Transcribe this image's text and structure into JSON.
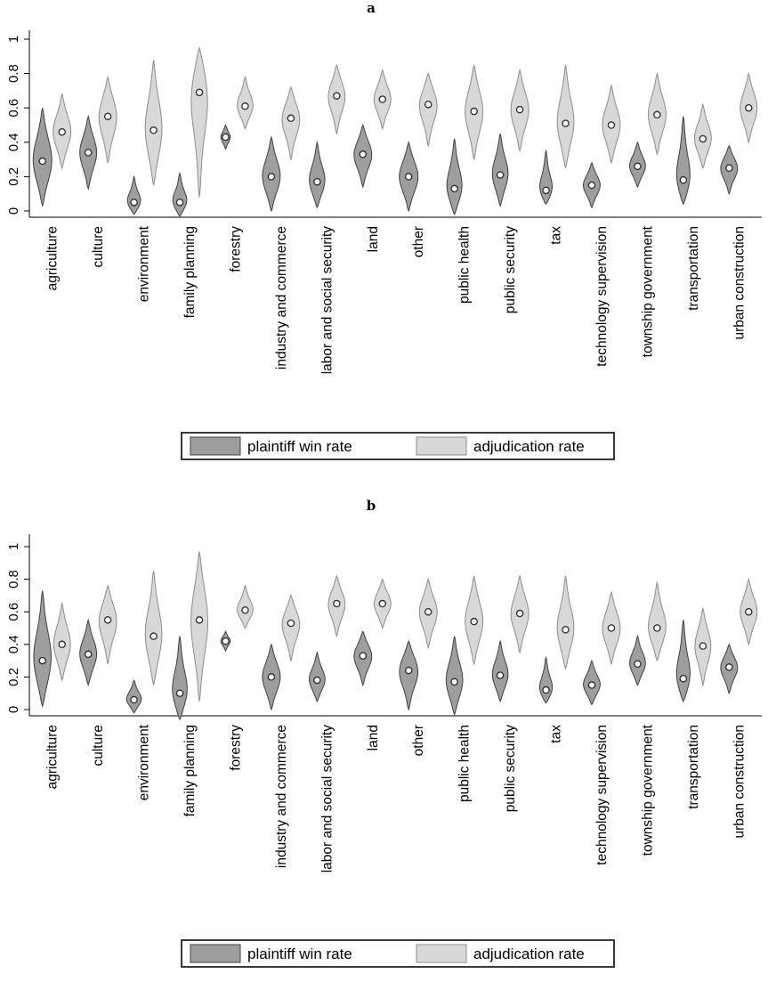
{
  "figure": {
    "background": "#ffffff"
  },
  "legend": {
    "items": [
      {
        "label": "plaintiff win rate",
        "fill": "#9e9e9e",
        "stroke": "#3f3f3f"
      },
      {
        "label": "adjudication rate",
        "fill": "#d8d8d8",
        "stroke": "#8c8c8c"
      }
    ]
  },
  "violin_format": "each violin is [min, median, max, relative_width]",
  "chart_data": [
    {
      "panel": "a",
      "type": "violin",
      "title": "a",
      "xlabel": "",
      "ylabel": "",
      "ylim": [
        -0.08,
        1.0
      ],
      "grid": false,
      "legend_position": "bottom",
      "yticks": {
        "values": [
          0,
          0.2,
          0.4,
          0.6,
          0.8,
          1
        ],
        "labels": [
          "0",
          "0.2",
          "0.4",
          "0.6",
          "0.8",
          "1"
        ]
      },
      "categories": [
        "agriculture",
        "culture",
        "environment",
        "family planning",
        "forestry",
        "industry and commerce",
        "labor and social security",
        "land",
        "other",
        "public health",
        "public security",
        "tax",
        "technology supervision",
        "township government",
        "transportation",
        "urban construction"
      ],
      "series": [
        {
          "name": "plaintiff win rate",
          "fill": "#9e9e9e",
          "stroke": "#3f3f3f",
          "violins": [
            [
              0.03,
              0.29,
              0.6,
              1.0
            ],
            [
              0.13,
              0.34,
              0.55,
              0.9
            ],
            [
              -0.02,
              0.05,
              0.2,
              0.75
            ],
            [
              -0.03,
              0.05,
              0.22,
              0.8
            ],
            [
              0.36,
              0.43,
              0.5,
              0.5
            ],
            [
              0.0,
              0.2,
              0.43,
              0.95
            ],
            [
              0.02,
              0.17,
              0.4,
              0.85
            ],
            [
              0.14,
              0.33,
              0.5,
              0.95
            ],
            [
              0.0,
              0.2,
              0.4,
              1.0
            ],
            [
              -0.02,
              0.13,
              0.42,
              0.85
            ],
            [
              0.03,
              0.21,
              0.45,
              0.85
            ],
            [
              0.04,
              0.12,
              0.35,
              0.75
            ],
            [
              0.02,
              0.15,
              0.28,
              0.9
            ],
            [
              0.14,
              0.26,
              0.4,
              0.85
            ],
            [
              0.04,
              0.18,
              0.55,
              0.8
            ],
            [
              0.1,
              0.25,
              0.38,
              0.9
            ]
          ]
        },
        {
          "name": "adjudication rate",
          "fill": "#d8d8d8",
          "stroke": "#8c8c8c",
          "violins": [
            [
              0.25,
              0.46,
              0.68,
              0.95
            ],
            [
              0.28,
              0.55,
              0.78,
              0.95
            ],
            [
              0.15,
              0.47,
              0.88,
              0.9
            ],
            [
              0.08,
              0.69,
              0.95,
              0.95
            ],
            [
              0.48,
              0.61,
              0.78,
              0.85
            ],
            [
              0.3,
              0.54,
              0.72,
              0.95
            ],
            [
              0.45,
              0.67,
              0.85,
              0.9
            ],
            [
              0.48,
              0.65,
              0.82,
              0.9
            ],
            [
              0.38,
              0.62,
              0.8,
              0.95
            ],
            [
              0.3,
              0.58,
              0.85,
              0.95
            ],
            [
              0.35,
              0.59,
              0.82,
              0.95
            ],
            [
              0.25,
              0.51,
              0.85,
              0.9
            ],
            [
              0.28,
              0.5,
              0.73,
              0.95
            ],
            [
              0.33,
              0.56,
              0.8,
              0.95
            ],
            [
              0.25,
              0.42,
              0.62,
              0.9
            ],
            [
              0.4,
              0.6,
              0.8,
              0.9
            ]
          ]
        }
      ]
    },
    {
      "panel": "b",
      "type": "violin",
      "title": "b",
      "xlabel": "",
      "ylabel": "",
      "ylim": [
        -0.08,
        1.0
      ],
      "grid": false,
      "legend_position": "bottom",
      "yticks": {
        "values": [
          0,
          0.2,
          0.4,
          0.6,
          0.8,
          1
        ],
        "labels": [
          "0",
          "0.2",
          "0.4",
          "0.6",
          "0.8",
          "1"
        ]
      },
      "categories": [
        "agriculture",
        "culture",
        "environment",
        "family planning",
        "forestry",
        "industry and commerce",
        "labor and social security",
        "land",
        "other",
        "public health",
        "public security",
        "tax",
        "technology supervision",
        "township government",
        "transportation",
        "urban construction"
      ],
      "series": [
        {
          "name": "plaintiff win rate",
          "fill": "#9e9e9e",
          "stroke": "#3f3f3f",
          "violins": [
            [
              0.02,
              0.3,
              0.73,
              0.95
            ],
            [
              0.15,
              0.34,
              0.55,
              0.9
            ],
            [
              -0.02,
              0.06,
              0.18,
              0.8
            ],
            [
              -0.06,
              0.1,
              0.45,
              0.85
            ],
            [
              0.36,
              0.42,
              0.48,
              0.5
            ],
            [
              0.0,
              0.2,
              0.4,
              0.95
            ],
            [
              0.05,
              0.18,
              0.35,
              0.85
            ],
            [
              0.15,
              0.33,
              0.48,
              0.95
            ],
            [
              0.0,
              0.24,
              0.42,
              1.0
            ],
            [
              -0.03,
              0.17,
              0.45,
              0.9
            ],
            [
              0.05,
              0.21,
              0.42,
              0.85
            ],
            [
              0.04,
              0.12,
              0.32,
              0.75
            ],
            [
              0.03,
              0.15,
              0.3,
              0.9
            ],
            [
              0.15,
              0.28,
              0.45,
              0.85
            ],
            [
              0.05,
              0.19,
              0.55,
              0.8
            ],
            [
              0.1,
              0.26,
              0.4,
              0.9
            ]
          ]
        },
        {
          "name": "adjudication rate",
          "fill": "#d8d8d8",
          "stroke": "#8c8c8c",
          "violins": [
            [
              0.18,
              0.4,
              0.65,
              0.9
            ],
            [
              0.28,
              0.55,
              0.76,
              0.95
            ],
            [
              0.15,
              0.45,
              0.85,
              0.9
            ],
            [
              0.05,
              0.55,
              0.97,
              0.9
            ],
            [
              0.5,
              0.61,
              0.76,
              0.85
            ],
            [
              0.3,
              0.53,
              0.7,
              0.95
            ],
            [
              0.45,
              0.65,
              0.82,
              0.9
            ],
            [
              0.5,
              0.65,
              0.8,
              0.9
            ],
            [
              0.38,
              0.6,
              0.8,
              0.95
            ],
            [
              0.28,
              0.54,
              0.82,
              0.95
            ],
            [
              0.35,
              0.59,
              0.82,
              0.95
            ],
            [
              0.25,
              0.49,
              0.82,
              0.9
            ],
            [
              0.28,
              0.5,
              0.72,
              0.95
            ],
            [
              0.3,
              0.5,
              0.78,
              0.95
            ],
            [
              0.15,
              0.39,
              0.62,
              0.85
            ],
            [
              0.4,
              0.6,
              0.8,
              0.9
            ]
          ]
        }
      ]
    }
  ]
}
